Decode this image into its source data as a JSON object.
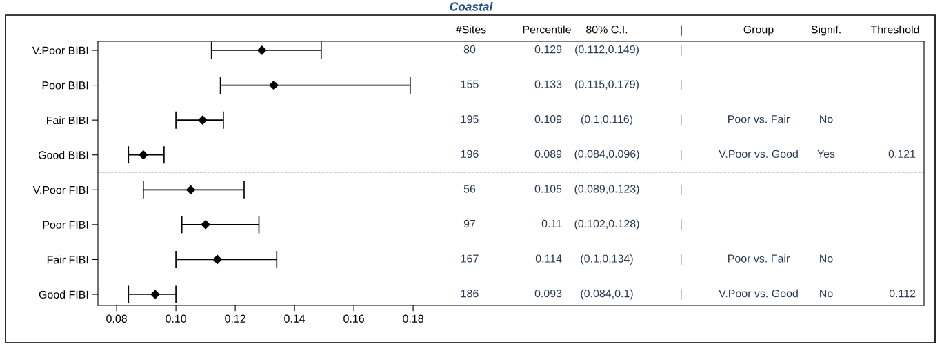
{
  "chart_data": {
    "type": "scatter",
    "orientation": "horizontal",
    "title": "Coastal",
    "categories": [
      "V.Poor BIBI",
      "Poor BIBI",
      "Fair BIBI",
      "Good BIBI",
      "V.Poor FIBI",
      "Poor FIBI",
      "Fair FIBI",
      "Good FIBI"
    ],
    "values": [
      0.129,
      0.133,
      0.109,
      0.089,
      0.105,
      0.11,
      0.114,
      0.093
    ],
    "errors": [
      [
        0.112,
        0.149
      ],
      [
        0.115,
        0.179
      ],
      [
        0.1,
        0.116
      ],
      [
        0.084,
        0.096
      ],
      [
        0.089,
        0.123
      ],
      [
        0.102,
        0.128
      ],
      [
        0.1,
        0.134
      ],
      [
        0.084,
        0.1
      ]
    ],
    "color": "#000000",
    "marker": "diamond",
    "xlim": [
      0.0737,
      0.3523
    ],
    "xticks": [
      {
        "value": 0.08,
        "label": "0.08"
      },
      {
        "value": 0.1,
        "label": "0.10"
      },
      {
        "value": 0.12,
        "label": "0.12"
      },
      {
        "value": 0.14,
        "label": "0.14"
      },
      {
        "value": 0.16,
        "label": "0.16"
      },
      {
        "value": 0.18,
        "label": "0.18"
      }
    ],
    "annotations": [
      "#Sites",
      "Percentile",
      "80% C.I.",
      "|",
      "Group",
      "Signif.",
      "Threshold",
      "80",
      "0.129",
      "(0.112,0.149)",
      "|",
      null,
      null,
      null,
      "155",
      "0.133",
      "(0.115,0.179)",
      "|",
      null,
      null,
      null,
      "195",
      "0.109",
      "(0.1,0.116)",
      "|",
      "Poor vs. Fair",
      "No",
      null,
      "196",
      "0.089",
      "(0.084,0.096)",
      "|",
      "V.Poor vs. Good",
      "Yes",
      "0.121",
      "56",
      "0.105",
      "(0.089,0.123)",
      "|",
      null,
      null,
      null,
      "97",
      "0.11",
      "(0.102,0.128)",
      "|",
      null,
      null,
      null,
      "167",
      "0.114",
      "(0.1,0.134)",
      "|",
      "Poor vs. Fair",
      "No",
      null,
      "186",
      "0.093",
      "(0.084,0.1)",
      "|",
      "V.Poor vs. Good",
      "No",
      "0.112"
    ],
    "grid": false,
    "legend": false
  }
}
